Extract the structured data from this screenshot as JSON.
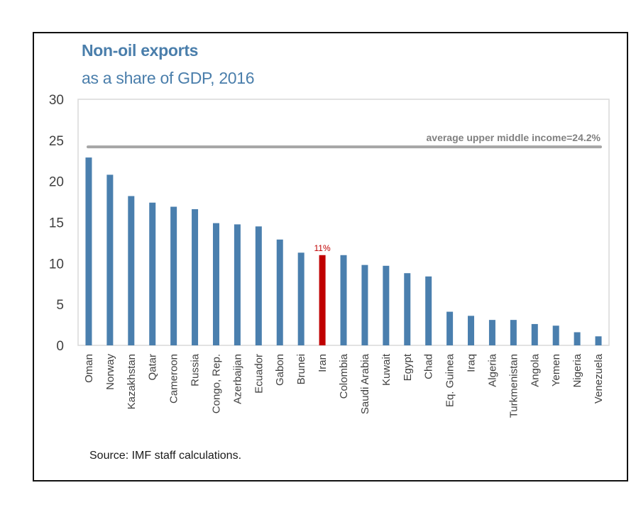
{
  "chart_data": {
    "type": "bar",
    "title": "Non-oil exports",
    "subtitle": "as a share of GDP, 2016",
    "xlabel": "",
    "ylabel": "",
    "ylim": [
      0,
      30
    ],
    "yticks": [
      0,
      5,
      10,
      15,
      20,
      25,
      30
    ],
    "grid": false,
    "categories": [
      "Oman",
      "Norway",
      "Kazakhstan",
      "Qatar",
      "Cameroon",
      "Russia",
      "Congo, Rep.",
      "Azerbaijan",
      "Ecuador",
      "Gabon",
      "Brunei",
      "Iran",
      "Colombia",
      "Saudi Arabia",
      "Kuwait",
      "Egypt",
      "Chad",
      "Eq. Guinea",
      "Iraq",
      "Algeria",
      "Turkmenistan",
      "Angola",
      "Yemen",
      "Nigeria",
      "Venezuela"
    ],
    "values": [
      22.9,
      20.8,
      18.2,
      17.4,
      16.9,
      16.6,
      14.9,
      14.75,
      14.5,
      12.9,
      11.3,
      11.0,
      11.0,
      9.8,
      9.7,
      8.8,
      8.4,
      4.1,
      3.6,
      3.1,
      3.1,
      2.6,
      2.4,
      1.6,
      1.1
    ],
    "highlight": {
      "category": "Iran",
      "label": "11%",
      "color": "#c00000"
    },
    "bar_color": "#4a7fae",
    "reference_line": {
      "value": 24.2,
      "label": "average upper middle income=24.2%",
      "color": "#a6a6a6"
    },
    "source": "Source: IMF staff calculations."
  }
}
